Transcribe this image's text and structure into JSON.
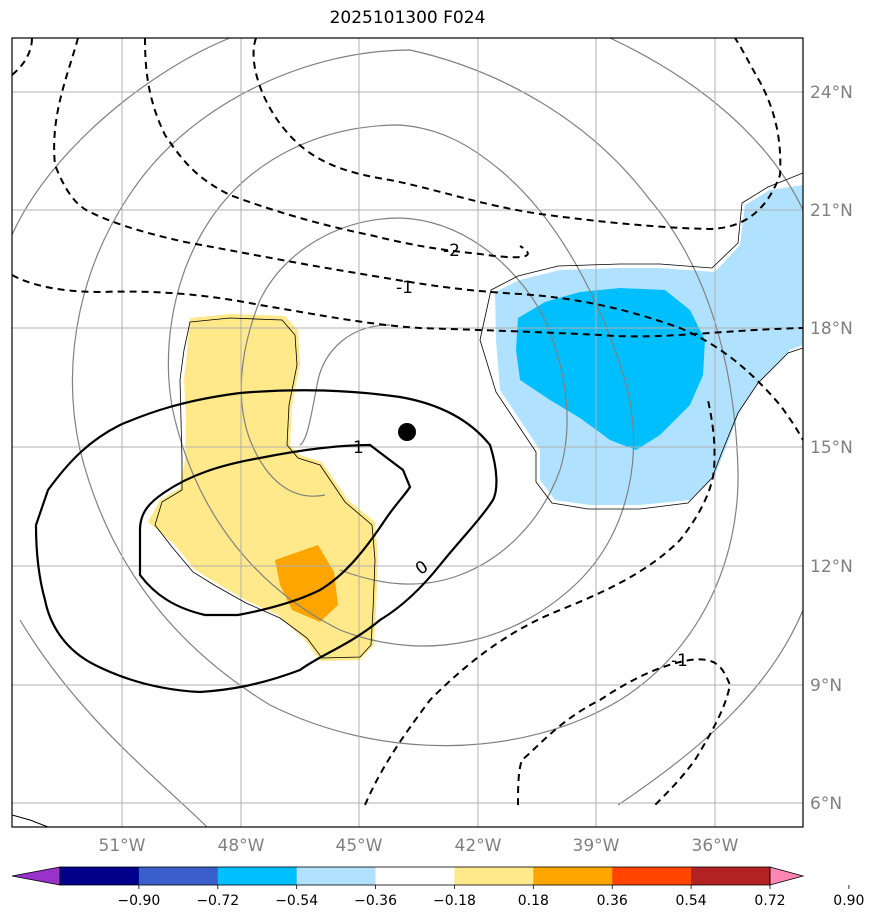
{
  "title": "2025101300 F024",
  "lat_labels": [
    "24°N",
    "21°N",
    "18°N",
    "15°N",
    "12°N",
    "9°N",
    "6°N"
  ],
  "lon_labels": [
    "51°W",
    "48°W",
    "45°W",
    "42°W",
    "39°W",
    "36°W"
  ],
  "contour_labels": [
    "-2",
    "-1",
    "1",
    "0",
    "-1"
  ],
  "colorbar": {
    "tick_labels": [
      "−0.90",
      "−0.72",
      "−0.54",
      "−0.36",
      "−0.18",
      "0.18",
      "0.36",
      "0.54",
      "0.72",
      "0.90"
    ],
    "colors": [
      "#9932cc",
      "#00008b",
      "#3a5fcd",
      "#00bfff",
      "#b0e2ff",
      "#ffffff",
      "#ffe98a",
      "#ffa500",
      "#ff4500",
      "#b22222",
      "#ff86b4"
    ]
  },
  "colors": {
    "light_yellow": "#ffe98a",
    "orange": "#ffa500",
    "light_blue": "#b0e2ff",
    "deep_sky_blue": "#00bfff",
    "grid": "#b0b0b0",
    "axis_label": "#808080"
  },
  "marker": "storm-center-dot"
}
